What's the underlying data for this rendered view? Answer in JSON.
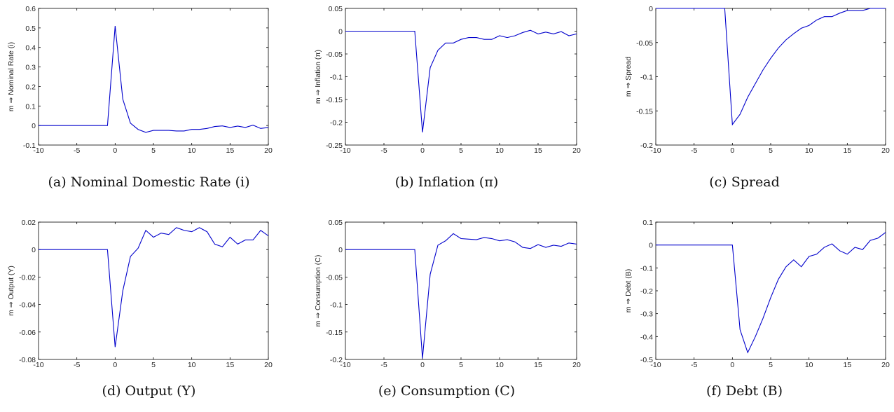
{
  "chart_data": [
    {
      "type": "line",
      "caption": "(a)  Nominal Domestic Rate (i)",
      "ylabel": "m ⇒ Nominal Rate (i)",
      "xlim": [
        -10,
        20
      ],
      "ylim": [
        -0.1,
        0.6
      ],
      "xticks": [
        -10,
        -5,
        0,
        5,
        10,
        15,
        20
      ],
      "yticks": [
        -0.1,
        0,
        0.1,
        0.2,
        0.3,
        0.4,
        0.5,
        0.6
      ],
      "ytick_labels": [
        "-0.1",
        "0",
        "0.1",
        "0.2",
        "0.3",
        "0.4",
        "0.5",
        "0.6"
      ],
      "series": [
        {
          "x": [
            -10,
            -9,
            -8,
            -7,
            -6,
            -5,
            -4,
            -3,
            -2,
            -1,
            0,
            1,
            2,
            3,
            4,
            5,
            6,
            7,
            8,
            9,
            10,
            11,
            12,
            13,
            14,
            15,
            16,
            17,
            18,
            19,
            20
          ],
          "y": [
            0,
            0,
            0,
            0,
            0,
            0,
            0,
            0,
            0,
            0,
            0.51,
            0.135,
            0.012,
            -0.02,
            -0.035,
            -0.025,
            -0.025,
            -0.025,
            -0.028,
            -0.028,
            -0.02,
            -0.02,
            -0.015,
            -0.005,
            -0.002,
            -0.01,
            -0.003,
            -0.01,
            0.002,
            -0.015,
            -0.01
          ]
        }
      ]
    },
    {
      "type": "line",
      "caption": "(b)  Inflation (π)",
      "ylabel": "m ⇒ Inflation (π)",
      "xlim": [
        -10,
        20
      ],
      "ylim": [
        -0.25,
        0.05
      ],
      "xticks": [
        -10,
        -5,
        0,
        5,
        10,
        15,
        20
      ],
      "yticks": [
        -0.25,
        -0.2,
        -0.15,
        -0.1,
        -0.05,
        0,
        0.05
      ],
      "ytick_labels": [
        "-0.25",
        "-0.2",
        "-0.15",
        "-0.1",
        "-0.05",
        "0",
        "0.05"
      ],
      "series": [
        {
          "x": [
            -10,
            -9,
            -8,
            -7,
            -6,
            -5,
            -4,
            -3,
            -2,
            -1,
            0,
            1,
            2,
            3,
            4,
            5,
            6,
            7,
            8,
            9,
            10,
            11,
            12,
            13,
            14,
            15,
            16,
            17,
            18,
            19,
            20
          ],
          "y": [
            0,
            0,
            0,
            0,
            0,
            0,
            0,
            0,
            0,
            0,
            -0.222,
            -0.08,
            -0.042,
            -0.026,
            -0.026,
            -0.018,
            -0.014,
            -0.014,
            -0.018,
            -0.018,
            -0.01,
            -0.014,
            -0.01,
            -0.003,
            0.002,
            -0.006,
            -0.002,
            -0.006,
            -0.001,
            -0.01,
            -0.006
          ]
        }
      ]
    },
    {
      "type": "line",
      "caption": "(c)  Spread",
      "ylabel": "m ⇒ Spread",
      "xlim": [
        -10,
        20
      ],
      "ylim": [
        -0.2,
        0
      ],
      "xticks": [
        -10,
        -5,
        0,
        5,
        10,
        15,
        20
      ],
      "yticks": [
        -0.2,
        -0.15,
        -0.1,
        -0.05,
        0
      ],
      "ytick_labels": [
        "-0.2",
        "-0.15",
        "-0.1",
        "-0.05",
        "0"
      ],
      "series": [
        {
          "x": [
            -10,
            -9,
            -8,
            -7,
            -6,
            -5,
            -4,
            -3,
            -2,
            -1,
            0,
            1,
            2,
            3,
            4,
            5,
            6,
            7,
            8,
            9,
            10,
            11,
            12,
            13,
            14,
            15,
            16,
            17,
            18,
            19,
            20
          ],
          "y": [
            0,
            0,
            0,
            0,
            0,
            0,
            0,
            0,
            0,
            0,
            -0.17,
            -0.155,
            -0.13,
            -0.11,
            -0.09,
            -0.073,
            -0.058,
            -0.046,
            -0.037,
            -0.029,
            -0.025,
            -0.017,
            -0.012,
            -0.012,
            -0.007,
            -0.003,
            -0.003,
            -0.003,
            0,
            0,
            0
          ]
        }
      ]
    },
    {
      "type": "line",
      "caption": "(d)  Output (Y)",
      "ylabel": "m ⇒ Output (Y)",
      "xlim": [
        -10,
        20
      ],
      "ylim": [
        -0.08,
        0.02
      ],
      "xticks": [
        -10,
        -5,
        0,
        5,
        10,
        15,
        20
      ],
      "yticks": [
        -0.08,
        -0.06,
        -0.04,
        -0.02,
        0,
        0.02
      ],
      "ytick_labels": [
        "-0.08",
        "-0.06",
        "-0.04",
        "-0.02",
        "0",
        "0.02"
      ],
      "series": [
        {
          "x": [
            -10,
            -9,
            -8,
            -7,
            -6,
            -5,
            -4,
            -3,
            -2,
            -1,
            0,
            1,
            2,
            3,
            4,
            5,
            6,
            7,
            8,
            9,
            10,
            11,
            12,
            13,
            14,
            15,
            16,
            17,
            18,
            19,
            20
          ],
          "y": [
            0,
            0,
            0,
            0,
            0,
            0,
            0,
            0,
            0,
            0,
            -0.071,
            -0.03,
            -0.005,
            0.001,
            0.014,
            0.009,
            0.012,
            0.011,
            0.016,
            0.014,
            0.013,
            0.016,
            0.013,
            0.004,
            0.002,
            0.009,
            0.004,
            0.007,
            0.007,
            0.014,
            0.01
          ]
        }
      ]
    },
    {
      "type": "line",
      "caption": "(e)  Consumption (C)",
      "ylabel": "m ⇒ Consumption (C)",
      "xlim": [
        -10,
        20
      ],
      "ylim": [
        -0.2,
        0.05
      ],
      "xticks": [
        -10,
        -5,
        0,
        5,
        10,
        15,
        20
      ],
      "yticks": [
        -0.2,
        -0.15,
        -0.1,
        -0.05,
        0,
        0.05
      ],
      "ytick_labels": [
        "-0.2",
        "-0.15",
        "-0.1",
        "-0.05",
        "0",
        "0.05"
      ],
      "series": [
        {
          "x": [
            -10,
            -9,
            -8,
            -7,
            -6,
            -5,
            -4,
            -3,
            -2,
            -1,
            0,
            1,
            2,
            3,
            4,
            5,
            6,
            7,
            8,
            9,
            10,
            11,
            12,
            13,
            14,
            15,
            16,
            17,
            18,
            19,
            20
          ],
          "y": [
            0,
            0,
            0,
            0,
            0,
            0,
            0,
            0,
            0,
            0,
            -0.198,
            -0.045,
            0.008,
            0.016,
            0.029,
            0.02,
            0.019,
            0.018,
            0.022,
            0.02,
            0.016,
            0.018,
            0.014,
            0.004,
            0.002,
            0.009,
            0.004,
            0.008,
            0.006,
            0.012,
            0.01
          ]
        }
      ]
    },
    {
      "type": "line",
      "caption": "(f)  Debt (B)",
      "ylabel": "m ⇒ Debt (B)",
      "xlim": [
        -10,
        20
      ],
      "ylim": [
        -0.5,
        0.1
      ],
      "xticks": [
        -10,
        -5,
        0,
        5,
        10,
        15,
        20
      ],
      "yticks": [
        -0.5,
        -0.4,
        -0.3,
        -0.2,
        -0.1,
        0,
        0.1
      ],
      "ytick_labels": [
        "-0.5",
        "-0.4",
        "-0.3",
        "-0.2",
        "-0.1",
        "0",
        "0.1"
      ],
      "series": [
        {
          "x": [
            -10,
            -9,
            -8,
            -7,
            -6,
            -5,
            -4,
            -3,
            -2,
            -1,
            0,
            1,
            2,
            3,
            4,
            5,
            6,
            7,
            8,
            9,
            10,
            11,
            12,
            13,
            14,
            15,
            16,
            17,
            18,
            19,
            20
          ],
          "y": [
            0,
            0,
            0,
            0,
            0,
            0,
            0,
            0,
            0,
            0,
            0,
            -0.37,
            -0.47,
            -0.4,
            -0.32,
            -0.23,
            -0.15,
            -0.095,
            -0.065,
            -0.095,
            -0.05,
            -0.04,
            -0.01,
            0.005,
            -0.025,
            -0.04,
            -0.01,
            -0.02,
            0.02,
            0.03,
            0.055
          ]
        }
      ]
    }
  ],
  "style": {
    "line_color": "#0000cc",
    "axis_color": "#000000"
  }
}
